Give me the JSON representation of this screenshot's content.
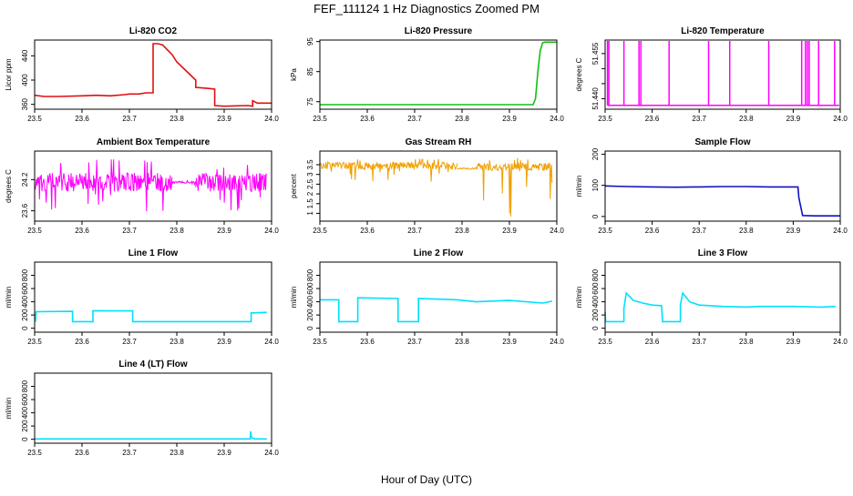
{
  "page": {
    "title": "FEF_111124  1 Hz Diagnostics Zoomed PM",
    "xlabel": "Hour of Day (UTC)"
  },
  "chart_data": [
    {
      "id": "co2",
      "type": "line",
      "title": "Li-820 CO2",
      "ylabel": "Licor ppm",
      "color": "#e01010",
      "xlim": [
        23.5,
        24.0
      ],
      "ylim": [
        352,
        466
      ],
      "xticks": [
        23.5,
        23.6,
        23.7,
        23.8,
        23.9,
        24.0
      ],
      "yticks": [
        360,
        400,
        440
      ],
      "x": [
        23.5,
        23.52,
        23.55,
        23.6,
        23.63,
        23.66,
        23.69,
        23.7,
        23.72,
        23.735,
        23.75,
        23.75,
        23.76,
        23.77,
        23.78,
        23.79,
        23.8,
        23.82,
        23.84,
        23.84,
        23.87,
        23.88,
        23.88,
        23.9,
        23.95,
        23.96,
        23.96,
        23.97,
        23.98,
        23.99,
        24.0
      ],
      "y": [
        375,
        373,
        373,
        374,
        375,
        374,
        376,
        377,
        377,
        379,
        379,
        460,
        460,
        458,
        450,
        442,
        430,
        415,
        400,
        388,
        386,
        385,
        358,
        357,
        358,
        357,
        366,
        362,
        362,
        362,
        362
      ]
    },
    {
      "id": "pressure",
      "type": "line",
      "title": "Li-820 Pressure",
      "ylabel": "kPa",
      "color": "#10c010",
      "xlim": [
        23.5,
        24.0
      ],
      "ylim": [
        72.5,
        95.5
      ],
      "xticks": [
        23.5,
        23.6,
        23.7,
        23.8,
        23.9,
        24.0
      ],
      "yticks": [
        75,
        85,
        95
      ],
      "x": [
        23.5,
        23.6,
        23.7,
        23.8,
        23.9,
        23.95,
        23.955,
        23.96,
        23.965,
        23.97,
        23.975,
        24.0
      ],
      "y": [
        74,
        74,
        74,
        74,
        74,
        74,
        76,
        85,
        92,
        94.6,
        94.8,
        94.8
      ]
    },
    {
      "id": "temp",
      "type": "line",
      "title": "Li-820 Temperature",
      "ylabel": "degrees C",
      "color": "#ff00ff",
      "xlim": [
        23.5,
        24.0
      ],
      "ylim": [
        51.4365,
        51.4595
      ],
      "xticks": [
        23.5,
        23.6,
        23.7,
        23.8,
        23.9,
        24.0
      ],
      "yticks": [
        51.44,
        51.445,
        51.45,
        51.455
      ],
      "ytick_labels": [
        "51.440",
        "",
        "",
        "51.455"
      ],
      "baseline": 51.4378,
      "spike_top": 51.4592,
      "spikes_x": [
        23.505,
        23.508,
        23.54,
        23.572,
        23.576,
        23.636,
        23.72,
        23.765,
        23.848,
        23.918,
        23.926,
        23.93,
        23.934,
        23.954,
        23.988
      ]
    },
    {
      "id": "ambient",
      "type": "noise",
      "title": "Ambient Box Temperature",
      "ylabel": "degrees C",
      "color": "#ff00ff",
      "xlim": [
        23.5,
        24.0
      ],
      "ylim": [
        23.4,
        24.75
      ],
      "xticks": [
        23.5,
        23.6,
        23.7,
        23.8,
        23.9,
        24.0
      ],
      "yticks": [
        23.6,
        24.2
      ],
      "segments": [
        [
          23.5,
          23.79,
          24.15,
          0.18,
          23.55,
          24.62
        ],
        [
          23.79,
          23.84,
          24.15,
          0.02,
          24.1,
          24.2
        ],
        [
          23.84,
          23.99,
          24.15,
          0.18,
          23.6,
          24.5
        ]
      ]
    },
    {
      "id": "rh",
      "type": "noise",
      "title": "Gas Stream RH",
      "ylabel": "percent",
      "color": "#f0a000",
      "xlim": [
        23.5,
        24.0
      ],
      "ylim": [
        0.6,
        4.2
      ],
      "xticks": [
        23.5,
        23.6,
        23.7,
        23.8,
        23.9,
        24.0
      ],
      "yticks": [
        1.0,
        1.5,
        2.0,
        2.5,
        3.0,
        3.5
      ],
      "segments": [
        [
          23.5,
          23.79,
          3.45,
          0.18,
          2.6,
          3.8
        ],
        [
          23.79,
          23.83,
          3.3,
          0.04,
          3.15,
          3.4
        ],
        [
          23.83,
          23.99,
          3.4,
          0.2,
          0.75,
          3.85
        ]
      ]
    },
    {
      "id": "sample",
      "type": "line",
      "title": "Sample Flow",
      "ylabel": "ml/min",
      "color": "#1010c0",
      "xlim": [
        23.5,
        24.0
      ],
      "ylim": [
        -15,
        210
      ],
      "xticks": [
        23.5,
        23.6,
        23.7,
        23.8,
        23.9,
        24.0
      ],
      "yticks": [
        0,
        100,
        200
      ],
      "x": [
        23.5,
        23.55,
        23.6,
        23.65,
        23.7,
        23.75,
        23.8,
        23.85,
        23.9,
        23.91,
        23.912,
        23.92,
        23.95,
        24.0
      ],
      "y": [
        98,
        96,
        95,
        94,
        95,
        96,
        96,
        95,
        95,
        95,
        60,
        3,
        2,
        2
      ]
    },
    {
      "id": "line1",
      "type": "line",
      "title": "Line 1 Flow",
      "ylabel": "ml/min",
      "color": "#00e0ff",
      "xlim": [
        23.5,
        24.0
      ],
      "ylim": [
        -60,
        1000
      ],
      "xticks": [
        23.5,
        23.6,
        23.7,
        23.8,
        23.9,
        24.0
      ],
      "yticks": [
        0,
        200,
        400,
        600,
        800
      ],
      "x": [
        23.5,
        23.502,
        23.503,
        23.58,
        23.58,
        23.623,
        23.623,
        23.707,
        23.707,
        23.8,
        23.9,
        23.957,
        23.957,
        23.99
      ],
      "y": [
        110,
        110,
        250,
        255,
        100,
        100,
        265,
        262,
        100,
        100,
        100,
        100,
        230,
        240
      ]
    },
    {
      "id": "line2",
      "type": "line",
      "title": "Line 2 Flow",
      "ylabel": "ml/min",
      "color": "#00e0ff",
      "xlim": [
        23.5,
        24.0
      ],
      "ylim": [
        -60,
        1000
      ],
      "xticks": [
        23.5,
        23.6,
        23.7,
        23.8,
        23.9,
        24.0
      ],
      "yticks": [
        0,
        200,
        400,
        600,
        800
      ],
      "x": [
        23.5,
        23.54,
        23.54,
        23.58,
        23.58,
        23.665,
        23.665,
        23.708,
        23.708,
        23.79,
        23.83,
        23.9,
        23.97,
        23.99
      ],
      "y": [
        430,
        430,
        100,
        100,
        460,
        450,
        100,
        100,
        450,
        430,
        400,
        420,
        380,
        410
      ]
    },
    {
      "id": "line3",
      "type": "line",
      "title": "Line 3 Flow",
      "ylabel": "ml/min",
      "color": "#00e0ff",
      "xlim": [
        23.5,
        24.0
      ],
      "ylim": [
        -60,
        1000
      ],
      "xticks": [
        23.5,
        23.6,
        23.7,
        23.8,
        23.9,
        24.0
      ],
      "yticks": [
        0,
        200,
        400,
        600,
        800
      ],
      "x": [
        23.5,
        23.501,
        23.503,
        23.54,
        23.54,
        23.545,
        23.56,
        23.58,
        23.6,
        23.62,
        23.622,
        23.66,
        23.66,
        23.665,
        23.68,
        23.7,
        23.75,
        23.8,
        23.83,
        23.9,
        23.96,
        23.99
      ],
      "y": [
        250,
        100,
        100,
        100,
        300,
        530,
        420,
        380,
        350,
        340,
        100,
        100,
        350,
        530,
        400,
        350,
        330,
        320,
        330,
        330,
        320,
        330
      ]
    },
    {
      "id": "line4",
      "type": "line",
      "title": "Line 4 (LT) Flow",
      "ylabel": "ml/min",
      "color": "#00e0ff",
      "xlim": [
        23.5,
        24.0
      ],
      "ylim": [
        -60,
        1000
      ],
      "xticks": [
        23.5,
        23.6,
        23.7,
        23.8,
        23.9,
        24.0
      ],
      "yticks": [
        0,
        200,
        400,
        600,
        800
      ],
      "x": [
        23.5,
        23.6,
        23.7,
        23.8,
        23.9,
        23.955,
        23.956,
        23.957,
        23.959,
        23.965,
        23.99
      ],
      "y": [
        5,
        5,
        5,
        5,
        5,
        5,
        120,
        50,
        20,
        5,
        5
      ]
    }
  ]
}
